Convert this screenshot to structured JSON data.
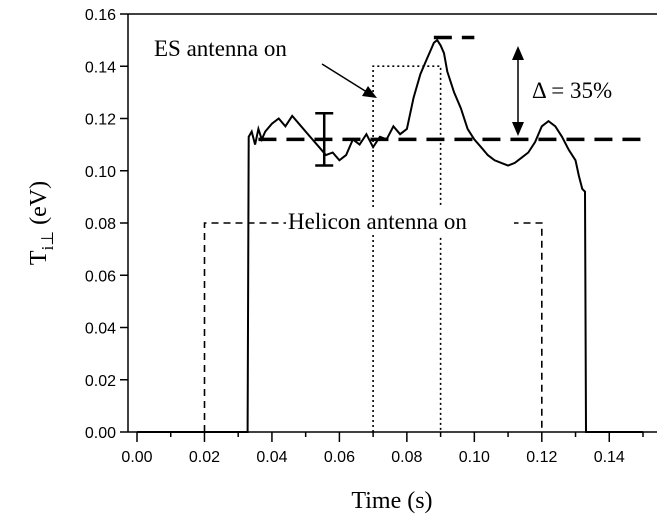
{
  "chart_data": {
    "type": "line",
    "xlabel": "Time (s)",
    "ylabel": {
      "main": "T",
      "sub": "i⊥",
      "rest": " (eV)"
    },
    "xlim": [
      0.0,
      0.15
    ],
    "ylim": [
      0.0,
      0.16
    ],
    "xticks": [
      "0.00",
      "0.02",
      "0.04",
      "0.06",
      "0.08",
      "0.10",
      "0.12",
      "0.14"
    ],
    "xtick_values": [
      0.0,
      0.02,
      0.04,
      0.06,
      0.08,
      0.1,
      0.12,
      0.14
    ],
    "yticks": [
      "0.00",
      "0.02",
      "0.04",
      "0.06",
      "0.08",
      "0.10",
      "0.12",
      "0.14",
      "0.16"
    ],
    "ytick_values": [
      0.0,
      0.02,
      0.04,
      0.06,
      0.08,
      0.1,
      0.12,
      0.14,
      0.16
    ],
    "grid": false,
    "series": [
      {
        "style": "solid",
        "x": [
          0.0,
          0.0328,
          0.0331,
          0.034,
          0.035,
          0.036,
          0.037,
          0.038,
          0.04,
          0.042,
          0.044,
          0.046,
          0.048,
          0.05,
          0.052,
          0.054,
          0.056,
          0.058,
          0.06,
          0.062,
          0.064,
          0.066,
          0.068,
          0.07,
          0.072,
          0.074,
          0.076,
          0.078,
          0.08,
          0.082,
          0.084,
          0.086,
          0.087,
          0.088,
          0.089,
          0.09,
          0.091,
          0.092,
          0.094,
          0.096,
          0.098,
          0.1,
          0.102,
          0.104,
          0.106,
          0.108,
          0.11,
          0.112,
          0.114,
          0.116,
          0.118,
          0.12,
          0.122,
          0.124,
          0.126,
          0.128,
          0.13,
          0.131,
          0.132,
          0.1328,
          0.1331,
          0.15
        ],
        "y": [
          0.0,
          0.0,
          0.113,
          0.115,
          0.11,
          0.116,
          0.112,
          0.115,
          0.118,
          0.12,
          0.117,
          0.121,
          0.118,
          0.115,
          0.112,
          0.109,
          0.106,
          0.107,
          0.104,
          0.106,
          0.112,
          0.11,
          0.114,
          0.109,
          0.113,
          0.112,
          0.117,
          0.114,
          0.116,
          0.128,
          0.137,
          0.143,
          0.146,
          0.149,
          0.15,
          0.148,
          0.145,
          0.138,
          0.13,
          0.124,
          0.116,
          0.112,
          0.109,
          0.106,
          0.104,
          0.103,
          0.102,
          0.103,
          0.105,
          0.107,
          0.111,
          0.117,
          0.119,
          0.117,
          0.113,
          0.108,
          0.104,
          0.098,
          0.093,
          0.092,
          0.0,
          0.0
        ]
      },
      {
        "style": "dashed",
        "label": "Helicon antenna on",
        "x": [
          0.02,
          0.02,
          0.12,
          0.12
        ],
        "y": [
          0.0,
          0.08,
          0.08,
          0.0
        ]
      },
      {
        "style": "dotted",
        "label": "ES antenna on",
        "x": [
          0.07,
          0.07,
          0.09,
          0.09
        ],
        "y": [
          0.0,
          0.14,
          0.14,
          0.0
        ]
      }
    ],
    "reference_lines": [
      {
        "y": 0.112,
        "x": [
          0.036,
          0.15
        ]
      },
      {
        "y": 0.151,
        "x": [
          0.088,
          0.1
        ]
      }
    ],
    "error_bar": {
      "x": 0.0555,
      "low": 0.102,
      "high": 0.122
    },
    "annotations": {
      "es_label": "ES antenna on",
      "helicon_label": "Helicon antenna on",
      "delta_label": "Δ = 35%"
    }
  }
}
